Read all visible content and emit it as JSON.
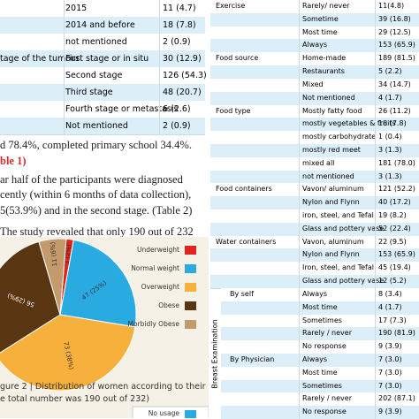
{
  "left_table": {
    "rows": [
      {
        "option": "2015",
        "value": "11 (4.7)"
      },
      {
        "option": "2014 and before",
        "value": "18 (7.8)"
      },
      {
        "option": "not mentioned",
        "value": "2 (0.9)"
      },
      {
        "group": "tage of the tumour",
        "option": "First stage or in situ",
        "value": "30 (12.9)"
      },
      {
        "option": "Second stage",
        "value": "126 (54.3)"
      },
      {
        "option": "Third stage",
        "value": "48 (20.7)"
      },
      {
        "option": "Fourth stage or metastasis",
        "value": "6 (2.6)"
      },
      {
        "option": "Not mentioned",
        "value": "2 (0.9)"
      }
    ]
  },
  "paragraphs": [
    {
      "text": "d 78.4%, completed primary school 34.4%."
    },
    {
      "text": "ble 1)",
      "ref": true
    },
    {
      "text": "ar half of the participants were diagnosed"
    },
    {
      "text": "cently (within 6 months of data collection),"
    },
    {
      "text": "5(53.9%) and in the second stage. (Table 2)"
    },
    {
      "text": "The study revealed that only 190 out of 232"
    }
  ],
  "figure": {
    "categories": [
      "Underweight",
      "Normal weight",
      "Overweight",
      "Obese",
      "Morbidly Obese"
    ],
    "values": [
      3,
      47,
      73,
      56,
      11
    ],
    "value_labels": [
      "3 (2%)",
      "47 (25%)",
      "73 (38%)",
      "56 (29%)",
      "11 (6%)"
    ],
    "colors": [
      "#e2231a",
      "#29abe2",
      "#f7b03c",
      "#5a3512",
      "#c49a6c"
    ],
    "caption": [
      "gure 2 | Distribution of women according to their recent BMI",
      "e total number was 190 out of 232)"
    ]
  },
  "bottom_legend": "No usage",
  "right_table": {
    "breast_label": "Breast Examination",
    "rows": [
      {
        "group": "Exercise",
        "option": "Rarely/ never",
        "value": "11(4.8)"
      },
      {
        "option": "Sometime",
        "value": "39 (16.8)"
      },
      {
        "option": "Most time",
        "value": "29 (12.5)"
      },
      {
        "option": "Always",
        "value": "153 (65.9)"
      },
      {
        "group": "Food source",
        "option": "Home-made",
        "value": "189 (81.5)"
      },
      {
        "option": "Restaurants",
        "value": "5 (2.2)"
      },
      {
        "option": "Mixed",
        "value": "34 (14.7)"
      },
      {
        "option": "Not mentioned",
        "value": "4 (1.7)"
      },
      {
        "group": "Food type",
        "option": "Mostly fatty food",
        "value": "26 (11.2)"
      },
      {
        "option": "mostly vegetables & fruits",
        "value": "18 (7.8)"
      },
      {
        "option": "mostly carbohydrate",
        "value": "1 (0.4)"
      },
      {
        "option": "mostly red meet",
        "value": "3 (1.3)"
      },
      {
        "option": "mixed all",
        "value": "181 (78.0)"
      },
      {
        "option": "not mentioned",
        "value": "3 (1.3)"
      },
      {
        "group": "Food containers",
        "option": "Vavon/ aluminum",
        "value": "121 (52.2)"
      },
      {
        "option": "Nylon and Flynn",
        "value": "40 (17.2)"
      },
      {
        "option": "iron, steel, and Tefal",
        "value": "19 (8.2)"
      },
      {
        "option": "Glass and pottery vase",
        "value": "52 (22.4)"
      },
      {
        "group": "Water containers",
        "option": "Vavon, aluminum",
        "value": "22 (9.5)"
      },
      {
        "option": "Nylon and Flynn",
        "value": "153 (65.9)"
      },
      {
        "option": "Iron, steel, and Tefal",
        "value": "45 (19.4)"
      },
      {
        "option": "Glass and pottery vase",
        "value": "12 (5.2)"
      },
      {
        "group": "By self",
        "option": "Always",
        "value": "8 (3.4)"
      },
      {
        "option": "Most time",
        "value": "4 (1.7)"
      },
      {
        "option": "Sometimes",
        "value": "17 (7.3)"
      },
      {
        "option": "Rarely / never",
        "value": "190 (81.9)"
      },
      {
        "option": "No response",
        "value": "9 (3.9)"
      },
      {
        "group": "By Physician",
        "option": "Always",
        "value": "7 (3.0)"
      },
      {
        "option": "Most time",
        "value": "7 (3.0)"
      },
      {
        "option": "Sometimes",
        "value": "7 (3.0)"
      },
      {
        "option": "Rarely / never",
        "value": "202 (87.1)"
      },
      {
        "option": "No response",
        "value": "9 (3.9)"
      }
    ]
  }
}
